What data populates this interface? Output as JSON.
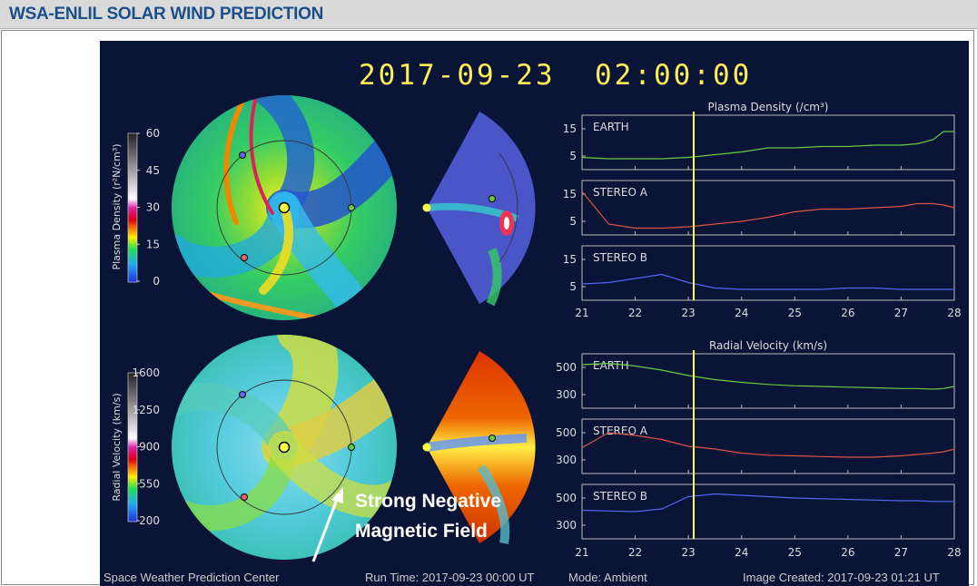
{
  "header": {
    "title": "WSA-ENLIL SOLAR WIND PREDICTION"
  },
  "viz": {
    "timestamp": "2017-09-23  02:00:00",
    "density_colorbar": {
      "label": "Plasma Density (r²N/cm³)",
      "ticks": [
        "60",
        "45",
        "30",
        "15",
        "0"
      ]
    },
    "velocity_colorbar": {
      "label": "Radial Velocity (km/s)",
      "ticks": [
        "1600",
        "1250",
        "900",
        "550",
        "200"
      ]
    },
    "annotation": {
      "line1": "Strong Negative",
      "line2": "Magnetic Field"
    },
    "footer": {
      "org": "Space Weather Prediction Center",
      "run_time": "Run Time: 2017-09-23 00:00 UT",
      "mode": "Mode: Ambient",
      "created": "Image Created: 2017-09-23 01:21 UT"
    },
    "colors": {
      "background": "#0a1437",
      "earth": "#66cc44",
      "stereo_a": "#dd5544",
      "stereo_b": "#5566ee",
      "marker": "#ffff44"
    }
  },
  "chart_data": [
    {
      "type": "line",
      "title": "Plasma Density (/cm³)",
      "x": [
        21,
        21.5,
        22,
        22.5,
        23,
        23.5,
        24,
        24.5,
        25,
        25.5,
        26,
        26.5,
        27,
        27.3,
        27.6,
        27.8,
        28
      ],
      "xticks": [
        "21",
        "22",
        "23",
        "24",
        "25",
        "26",
        "27",
        "28"
      ],
      "xlim": [
        21,
        28
      ],
      "current_time": 23.1,
      "panels": [
        {
          "name": "EARTH",
          "ylim": [
            0,
            20
          ],
          "yticks": [
            "15",
            "5"
          ],
          "values": [
            4.5,
            4.0,
            4.0,
            4.0,
            4.5,
            5.5,
            6.5,
            8.0,
            8.0,
            8.5,
            8.5,
            9.0,
            9.0,
            9.5,
            11,
            14,
            14
          ]
        },
        {
          "name": "STEREO A",
          "ylim": [
            0,
            20
          ],
          "yticks": [
            "15",
            "5"
          ],
          "values": [
            16,
            4.0,
            2.5,
            2.5,
            3.0,
            4.0,
            5.0,
            6.5,
            8.5,
            9.5,
            9.5,
            10,
            10.5,
            11.5,
            11.5,
            11,
            10
          ]
        },
        {
          "name": "STEREO B",
          "ylim": [
            0,
            20
          ],
          "yticks": [
            "15",
            "5"
          ],
          "values": [
            6.0,
            6.5,
            8.0,
            9.5,
            6.5,
            4.5,
            4.0,
            4.0,
            4.0,
            4.0,
            4.5,
            4.5,
            4.0,
            4.0,
            4.0,
            4.0,
            4.0
          ]
        }
      ]
    },
    {
      "type": "line",
      "title": "Radial Velocity (km/s)",
      "x": [
        21,
        21.5,
        22,
        22.5,
        23,
        23.5,
        24,
        24.5,
        25,
        25.5,
        26,
        26.5,
        27,
        27.3,
        27.6,
        27.8,
        28
      ],
      "xticks": [
        "21",
        "22",
        "23",
        "24",
        "25",
        "26",
        "27",
        "28"
      ],
      "xlim": [
        21,
        28
      ],
      "current_time": 23.1,
      "panels": [
        {
          "name": "EARTH",
          "ylim": [
            200,
            600
          ],
          "yticks": [
            "500",
            "300"
          ],
          "values": [
            520,
            530,
            510,
            480,
            440,
            410,
            390,
            375,
            365,
            360,
            355,
            350,
            345,
            345,
            340,
            345,
            360
          ]
        },
        {
          "name": "STEREO A",
          "ylim": [
            200,
            600
          ],
          "yticks": [
            "500",
            "300"
          ],
          "values": [
            390,
            500,
            480,
            450,
            400,
            380,
            350,
            335,
            330,
            325,
            320,
            320,
            330,
            340,
            350,
            360,
            380
          ]
        },
        {
          "name": "STEREO B",
          "ylim": [
            200,
            600
          ],
          "yticks": [
            "500",
            "300"
          ],
          "values": [
            410,
            405,
            400,
            420,
            510,
            530,
            520,
            510,
            500,
            495,
            490,
            485,
            480,
            480,
            475,
            475,
            475
          ]
        }
      ]
    }
  ]
}
